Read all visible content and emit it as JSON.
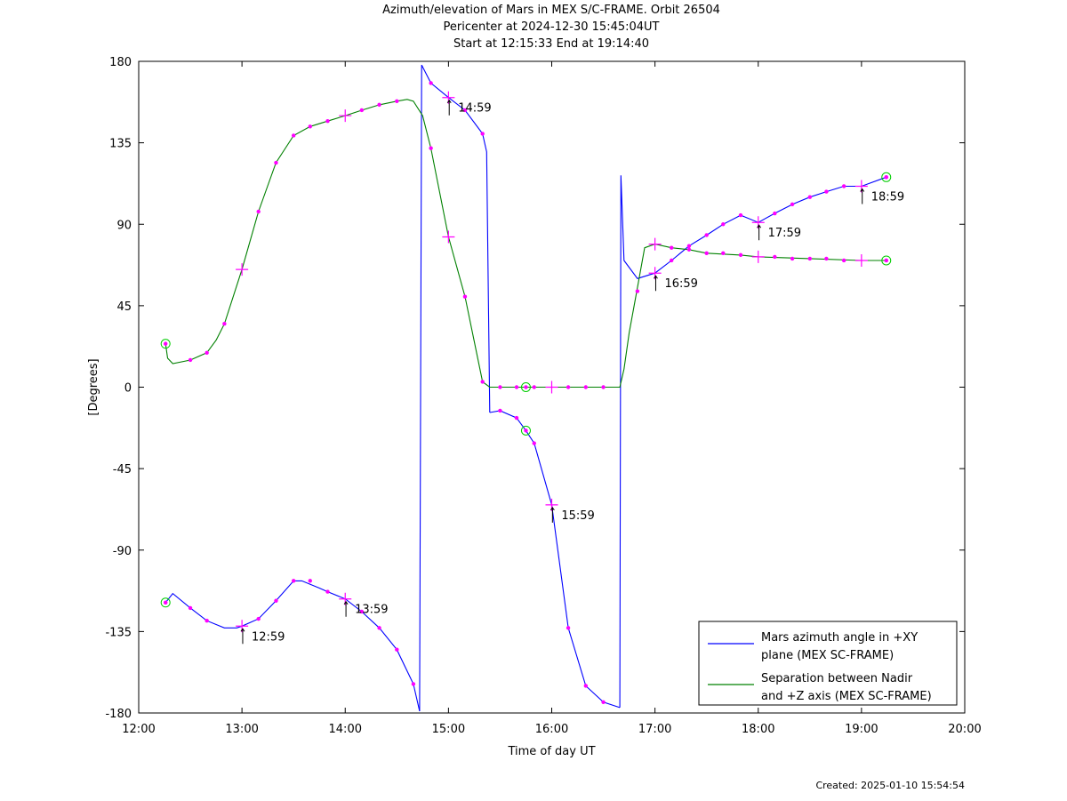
{
  "header": {
    "title": "Azimuth/elevation of Mars in MEX S/C-FRAME.  Orbit 26504",
    "subtitle1": "Pericenter at 2024-12-30 15:45:04UT",
    "subtitle2": "Start at 12:15:33 End at 19:14:40"
  },
  "footer": {
    "created": "Created: 2025-01-10 15:54:54"
  },
  "chart_data": {
    "type": "line",
    "title": "Azimuth/elevation of Mars in MEX S/C-FRAME.  Orbit 26504",
    "xlabel": "Time of day UT",
    "ylabel": "[Degrees]",
    "xlim": [
      12.0,
      20.0
    ],
    "ylim": [
      -180,
      180
    ],
    "x_ticks": [
      12,
      13,
      14,
      15,
      16,
      17,
      18,
      19,
      20
    ],
    "x_tick_labels": [
      "12:00",
      "13:00",
      "14:00",
      "15:00",
      "16:00",
      "17:00",
      "18:00",
      "19:00",
      "20:00"
    ],
    "y_ticks": [
      -180,
      -135,
      -90,
      -45,
      0,
      45,
      90,
      135,
      180
    ],
    "y_tick_labels": [
      "-180",
      "-135",
      "-90",
      "-45",
      "0",
      "45",
      "90",
      "135",
      "180"
    ],
    "grid": false,
    "legend_position": "bottom-right",
    "series": [
      {
        "name": "Mars azimuth angle in +XY plane (MEX SC-FRAME)",
        "legend_lines": [
          "Mars azimuth angle in +XY",
          "plane (MEX SC-FRAME)"
        ],
        "color": "#0000ff",
        "segments": [
          [
            [
              12.26,
              -119
            ],
            [
              12.33,
              -114
            ],
            [
              12.5,
              -122
            ],
            [
              12.66,
              -129
            ],
            [
              12.83,
              -133
            ],
            [
              12.95,
              -133
            ],
            [
              13.0,
              -132
            ],
            [
              13.16,
              -128
            ],
            [
              13.33,
              -118
            ],
            [
              13.5,
              -107
            ],
            [
              13.58,
              -107
            ],
            [
              13.75,
              -111
            ],
            [
              13.83,
              -113
            ],
            [
              14.0,
              -117
            ],
            [
              14.16,
              -124
            ],
            [
              14.33,
              -133
            ],
            [
              14.5,
              -145
            ],
            [
              14.66,
              -164
            ],
            [
              14.72,
              -179
            ]
          ],
          [
            [
              14.72,
              -179
            ],
            [
              14.74,
              178
            ],
            [
              14.83,
              168
            ],
            [
              15.0,
              160
            ],
            [
              15.16,
              153
            ],
            [
              15.33,
              140
            ],
            [
              15.37,
              130
            ],
            [
              15.4,
              -14
            ]
          ],
          [
            [
              15.4,
              -14
            ],
            [
              15.5,
              -13
            ],
            [
              15.66,
              -17
            ],
            [
              15.75,
              -24
            ],
            [
              15.83,
              -31
            ],
            [
              16.0,
              -65
            ],
            [
              16.16,
              -133
            ],
            [
              16.33,
              -165
            ],
            [
              16.5,
              -174
            ],
            [
              16.66,
              -177
            ]
          ],
          [
            [
              16.66,
              -177
            ],
            [
              16.67,
              117
            ],
            [
              16.7,
              70
            ],
            [
              16.83,
              60
            ],
            [
              17.0,
              63
            ],
            [
              17.16,
              70
            ],
            [
              17.33,
              78
            ],
            [
              17.5,
              84
            ],
            [
              17.66,
              90
            ],
            [
              17.83,
              95
            ],
            [
              18.0,
              91
            ],
            [
              18.16,
              96
            ],
            [
              18.33,
              101
            ],
            [
              18.5,
              105
            ],
            [
              18.66,
              108
            ],
            [
              18.83,
              111
            ],
            [
              19.0,
              111
            ],
            [
              19.24,
              116
            ]
          ]
        ],
        "markers": [
          [
            12.26,
            -119
          ],
          [
            12.5,
            -122
          ],
          [
            12.66,
            -129
          ],
          [
            13.16,
            -128
          ],
          [
            13.33,
            -118
          ],
          [
            13.5,
            -107
          ],
          [
            13.66,
            -107
          ],
          [
            13.83,
            -113
          ],
          [
            14.16,
            -124
          ],
          [
            14.33,
            -133
          ],
          [
            14.5,
            -145
          ],
          [
            14.66,
            -164
          ],
          [
            14.83,
            168
          ],
          [
            15.16,
            153
          ],
          [
            15.33,
            140
          ],
          [
            15.5,
            -13
          ],
          [
            15.66,
            -17
          ],
          [
            15.83,
            -31
          ],
          [
            16.16,
            -133
          ],
          [
            16.33,
            -165
          ],
          [
            16.5,
            -174
          ],
          [
            17.16,
            70
          ],
          [
            17.33,
            78
          ],
          [
            17.5,
            84
          ],
          [
            17.66,
            90
          ],
          [
            17.83,
            95
          ],
          [
            18.16,
            96
          ],
          [
            18.33,
            101
          ],
          [
            18.5,
            105
          ],
          [
            18.66,
            108
          ],
          [
            18.83,
            111
          ],
          [
            19.24,
            116
          ]
        ],
        "hour_marks": [
          [
            13.0,
            -132
          ],
          [
            14.0,
            -117
          ],
          [
            15.0,
            160
          ],
          [
            16.0,
            -65
          ],
          [
            17.0,
            63
          ],
          [
            18.0,
            91
          ],
          [
            19.0,
            111
          ]
        ],
        "hour_labels": [
          {
            "x": 12.99,
            "y": -132,
            "text": "12:59"
          },
          {
            "x": 13.99,
            "y": -117,
            "text": "13:59"
          },
          {
            "x": 14.99,
            "y": 160,
            "text": "14:59"
          },
          {
            "x": 15.99,
            "y": -65,
            "text": "15:59"
          },
          {
            "x": 16.99,
            "y": 63,
            "text": "16:59"
          },
          {
            "x": 17.99,
            "y": 91,
            "text": "17:59"
          },
          {
            "x": 18.99,
            "y": 111,
            "text": "18:59"
          }
        ],
        "circles": [
          [
            12.26,
            -119
          ],
          [
            15.75,
            -24
          ],
          [
            19.24,
            116
          ]
        ]
      },
      {
        "name": "Separation between Nadir and +Z axis (MEX SC-FRAME)",
        "legend_lines": [
          "Separation between Nadir",
          "and +Z axis (MEX SC-FRAME)"
        ],
        "color": "#008000",
        "segments": [
          [
            [
              12.26,
              24
            ],
            [
              12.28,
              16
            ],
            [
              12.33,
              13
            ],
            [
              12.5,
              15
            ],
            [
              12.66,
              19
            ],
            [
              12.75,
              26
            ],
            [
              12.83,
              35
            ],
            [
              13.0,
              65
            ],
            [
              13.16,
              97
            ],
            [
              13.33,
              124
            ],
            [
              13.5,
              139
            ],
            [
              13.66,
              144
            ],
            [
              13.83,
              147
            ],
            [
              14.0,
              150
            ],
            [
              14.16,
              153
            ],
            [
              14.33,
              156
            ],
            [
              14.5,
              158
            ],
            [
              14.6,
              159
            ],
            [
              14.66,
              158
            ],
            [
              14.75,
              150
            ],
            [
              14.83,
              132
            ],
            [
              15.0,
              83
            ],
            [
              15.16,
              50
            ],
            [
              15.33,
              3
            ],
            [
              15.4,
              0
            ],
            [
              15.5,
              0
            ],
            [
              15.75,
              0
            ],
            [
              16.0,
              0
            ],
            [
              16.5,
              0
            ],
            [
              16.66,
              0
            ],
            [
              16.7,
              10
            ],
            [
              16.75,
              30
            ],
            [
              16.83,
              55
            ],
            [
              16.9,
              77
            ],
            [
              17.0,
              79
            ],
            [
              17.16,
              77
            ],
            [
              17.33,
              76
            ],
            [
              17.5,
              74
            ],
            [
              17.83,
              73
            ],
            [
              18.0,
              72
            ],
            [
              18.5,
              71
            ],
            [
              19.0,
              70
            ],
            [
              19.24,
              70
            ]
          ]
        ],
        "markers": [
          [
            12.5,
            15
          ],
          [
            12.66,
            19
          ],
          [
            12.83,
            35
          ],
          [
            13.16,
            97
          ],
          [
            13.33,
            124
          ],
          [
            13.5,
            139
          ],
          [
            13.66,
            144
          ],
          [
            13.83,
            147
          ],
          [
            14.16,
            153
          ],
          [
            14.33,
            156
          ],
          [
            14.5,
            158
          ],
          [
            14.83,
            132
          ],
          [
            15.16,
            50
          ],
          [
            15.33,
            3
          ],
          [
            15.5,
            0
          ],
          [
            15.66,
            0
          ],
          [
            15.83,
            0
          ],
          [
            16.16,
            0
          ],
          [
            16.33,
            0
          ],
          [
            16.5,
            0
          ],
          [
            16.83,
            53
          ],
          [
            17.16,
            77
          ],
          [
            17.33,
            76
          ],
          [
            17.5,
            74
          ],
          [
            17.66,
            74
          ],
          [
            17.83,
            73
          ],
          [
            18.16,
            72
          ],
          [
            18.33,
            71
          ],
          [
            18.5,
            71
          ],
          [
            18.66,
            71
          ],
          [
            18.83,
            70
          ],
          [
            19.24,
            70
          ]
        ],
        "hour_marks": [
          [
            13.0,
            65
          ],
          [
            14.0,
            150
          ],
          [
            15.0,
            83
          ],
          [
            16.0,
            0
          ],
          [
            17.0,
            79
          ],
          [
            18.0,
            72
          ],
          [
            19.0,
            70
          ]
        ],
        "circles": [
          [
            12.26,
            24
          ],
          [
            15.75,
            0
          ],
          [
            19.24,
            70
          ]
        ]
      }
    ],
    "marker_color": "#ff00ff",
    "circle_color": "#00cc00"
  }
}
